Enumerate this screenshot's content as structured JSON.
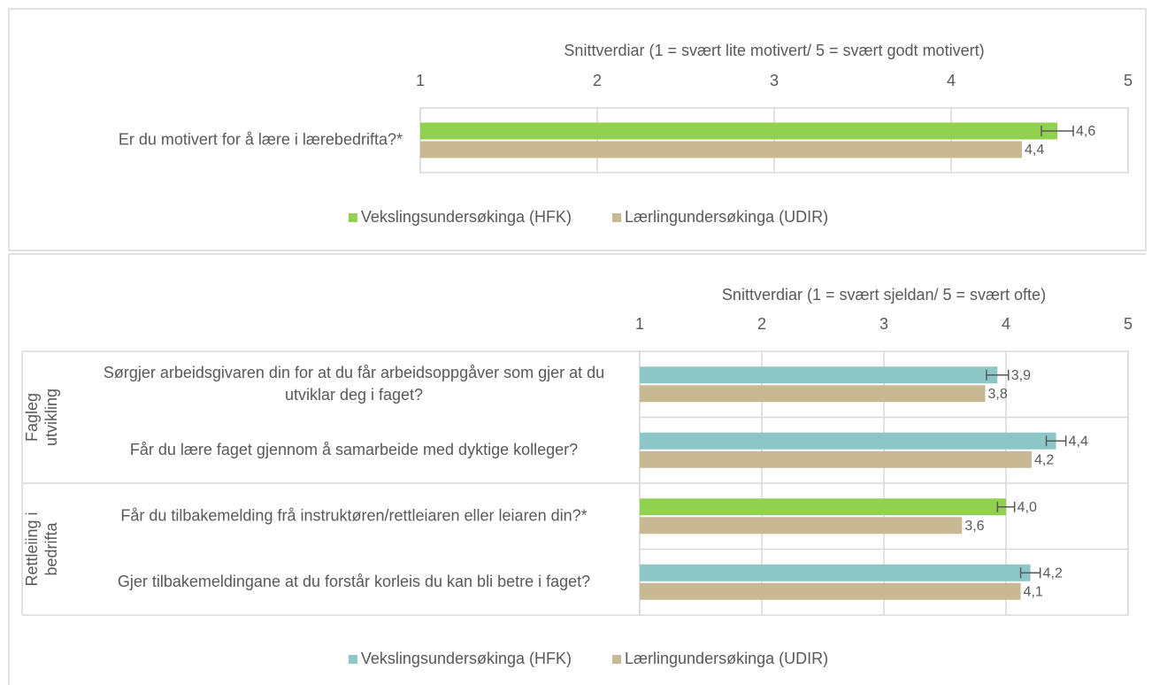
{
  "chart_data": [
    {
      "type": "bar",
      "orientation": "horizontal",
      "x_label": "Snittverdiar (1 = svært lite motivert/ 5 = svært godt motivert)",
      "xlim": [
        1,
        5
      ],
      "xticks": [
        1,
        2,
        3,
        4,
        5
      ],
      "grid": true,
      "categories": [
        "Er du motivert for å lære i lærebedrifta?*"
      ],
      "series": [
        {
          "name": "Vekslingsundersøkinga (HFK)",
          "color": "#92d050",
          "values": [
            4.6
          ],
          "value_labels": [
            "4,6"
          ],
          "errors": [
            0.09
          ]
        },
        {
          "name": "Lærlingundersøkinga (UDIR)",
          "color": "#c8b994",
          "values": [
            4.4
          ],
          "value_labels": [
            "4,4"
          ]
        }
      ]
    },
    {
      "type": "bar",
      "orientation": "horizontal",
      "x_label": "Snittverdiar (1 = svært sjeldan/ 5 = svært ofte)",
      "xlim": [
        1,
        5
      ],
      "xticks": [
        1,
        2,
        3,
        4,
        5
      ],
      "grid": true,
      "categories": [
        "Sørgjer arbeidsgivaren din for at du får arbeidsoppgåver som gjer at du utviklar deg i faget?",
        "Får du lære faget gjennom å samarbeide med dyktige kolleger?",
        "Får du tilbakemelding frå instruktøren/rettleiaren eller leiaren din?*",
        "Gjer tilbakemeldingane at du forstår korleis du kan bli betre i faget?"
      ],
      "groups": [
        {
          "name": "Fagleg\nutvikling",
          "size": 2
        },
        {
          "name": "Rettleiing i\nbedrifta",
          "size": 2
        }
      ],
      "series": [
        {
          "name": "Vekslingsundersøkinga (HFK)",
          "color": "#8cc6c6",
          "colors": [
            "#8cc6c6",
            "#8cc6c6",
            "#92d050",
            "#8cc6c6"
          ],
          "values": [
            3.93,
            4.41,
            4.0,
            4.2
          ],
          "value_labels": [
            "3,9",
            "4,4",
            "4,0",
            "4,2"
          ],
          "errors": [
            0.09,
            0.08,
            0.07,
            0.08
          ]
        },
        {
          "name": "Lærlingundersøkinga (UDIR)",
          "color": "#c8b994",
          "values": [
            3.83,
            4.21,
            3.64,
            4.12
          ],
          "value_labels": [
            "3,8",
            "4,2",
            "3,6",
            "4,1"
          ]
        }
      ]
    }
  ]
}
